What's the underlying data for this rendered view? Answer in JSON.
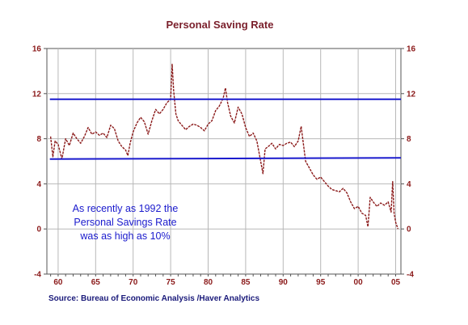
{
  "chart_data": {
    "type": "line",
    "title": "Personal Saving Rate",
    "xlabel": "",
    "ylabel": "",
    "xlim": [
      1958.5,
      2005.7
    ],
    "ylim": [
      -4,
      16
    ],
    "x_ticks": [
      60,
      65,
      70,
      75,
      80,
      85,
      90,
      95,
      0,
      5
    ],
    "x_tick_labels": [
      "60",
      "65",
      "70",
      "75",
      "80",
      "85",
      "90",
      "95",
      "00",
      "05"
    ],
    "x_tick_years": [
      1960,
      1965,
      1970,
      1975,
      1980,
      1985,
      1990,
      1995,
      2000,
      2005
    ],
    "y_ticks": [
      -4,
      0,
      4,
      8,
      12,
      16
    ],
    "y_tick_labels": [
      "-4",
      "0",
      "4",
      "8",
      "12",
      "16"
    ],
    "grid": true,
    "series": [
      {
        "color": "#8b1a1a",
        "x": [
          1959.0,
          1959.3,
          1959.6,
          1960.0,
          1960.5,
          1961.0,
          1961.5,
          1962.0,
          1962.5,
          1963.0,
          1963.5,
          1964.0,
          1964.5,
          1965.0,
          1965.5,
          1966.0,
          1966.5,
          1967.0,
          1967.5,
          1968.0,
          1968.5,
          1969.0,
          1969.3,
          1969.6,
          1970.0,
          1970.5,
          1971.0,
          1971.5,
          1972.0,
          1972.5,
          1973.0,
          1973.5,
          1974.0,
          1974.5,
          1975.0,
          1975.2,
          1975.4,
          1975.7,
          1976.0,
          1976.5,
          1977.0,
          1977.5,
          1978.0,
          1978.5,
          1979.0,
          1979.5,
          1980.0,
          1980.5,
          1981.0,
          1981.5,
          1982.0,
          1982.3,
          1982.6,
          1983.0,
          1983.5,
          1984.0,
          1984.5,
          1985.0,
          1985.5,
          1986.0,
          1986.5,
          1987.0,
          1987.3,
          1987.6,
          1988.0,
          1988.5,
          1989.0,
          1989.5,
          1990.0,
          1990.5,
          1991.0,
          1991.5,
          1992.0,
          1992.4,
          1992.8,
          1993.0,
          1993.5,
          1994.0,
          1994.5,
          1995.0,
          1995.5,
          1996.0,
          1996.5,
          1997.0,
          1997.5,
          1998.0,
          1998.5,
          1999.0,
          1999.5,
          2000.0,
          2000.5,
          2001.0,
          2001.3,
          2001.6,
          2002.0,
          2002.5,
          2003.0,
          2003.5,
          2004.0,
          2004.4,
          2004.6,
          2004.8,
          2005.0,
          2005.3
        ],
        "values": [
          8.2,
          6.4,
          7.8,
          7.5,
          6.2,
          8.0,
          7.4,
          8.5,
          8.0,
          7.6,
          8.2,
          9.0,
          8.4,
          8.6,
          8.3,
          8.5,
          8.1,
          9.2,
          8.9,
          7.8,
          7.3,
          7.0,
          6.5,
          7.6,
          8.6,
          9.4,
          9.9,
          9.5,
          8.4,
          9.6,
          10.6,
          10.2,
          10.6,
          11.2,
          11.5,
          14.6,
          12.3,
          10.2,
          9.6,
          9.2,
          8.8,
          9.1,
          9.3,
          9.2,
          9.0,
          8.7,
          9.3,
          9.6,
          10.5,
          10.9,
          11.6,
          12.5,
          11.2,
          10.0,
          9.4,
          10.8,
          10.2,
          9.0,
          8.2,
          8.5,
          7.8,
          6.0,
          4.9,
          7.1,
          7.3,
          7.6,
          7.1,
          7.5,
          7.4,
          7.6,
          7.7,
          7.3,
          7.8,
          9.1,
          7.0,
          6.0,
          5.4,
          4.8,
          4.4,
          4.6,
          4.2,
          3.8,
          3.5,
          3.4,
          3.3,
          3.6,
          3.2,
          2.4,
          1.8,
          2.0,
          1.4,
          1.2,
          0.2,
          2.8,
          2.4,
          2.0,
          2.3,
          2.1,
          2.4,
          1.5,
          4.2,
          1.4,
          0.6,
          0.0
        ]
      },
      {
        "color": "#1a1acd",
        "x": [
          1958.9,
          2005.7
        ],
        "values": [
          11.5,
          11.5
        ]
      },
      {
        "color": "#1a1acd",
        "x": [
          1958.9,
          2005.7
        ],
        "values": [
          6.2,
          6.3
        ]
      }
    ],
    "annotation": [
      "As recently as 1992 the",
      "Personal Savings Rate",
      "was as high as 10%"
    ]
  },
  "source_text": "Source:  Bureau of Economic Analysis /Haver Analytics"
}
